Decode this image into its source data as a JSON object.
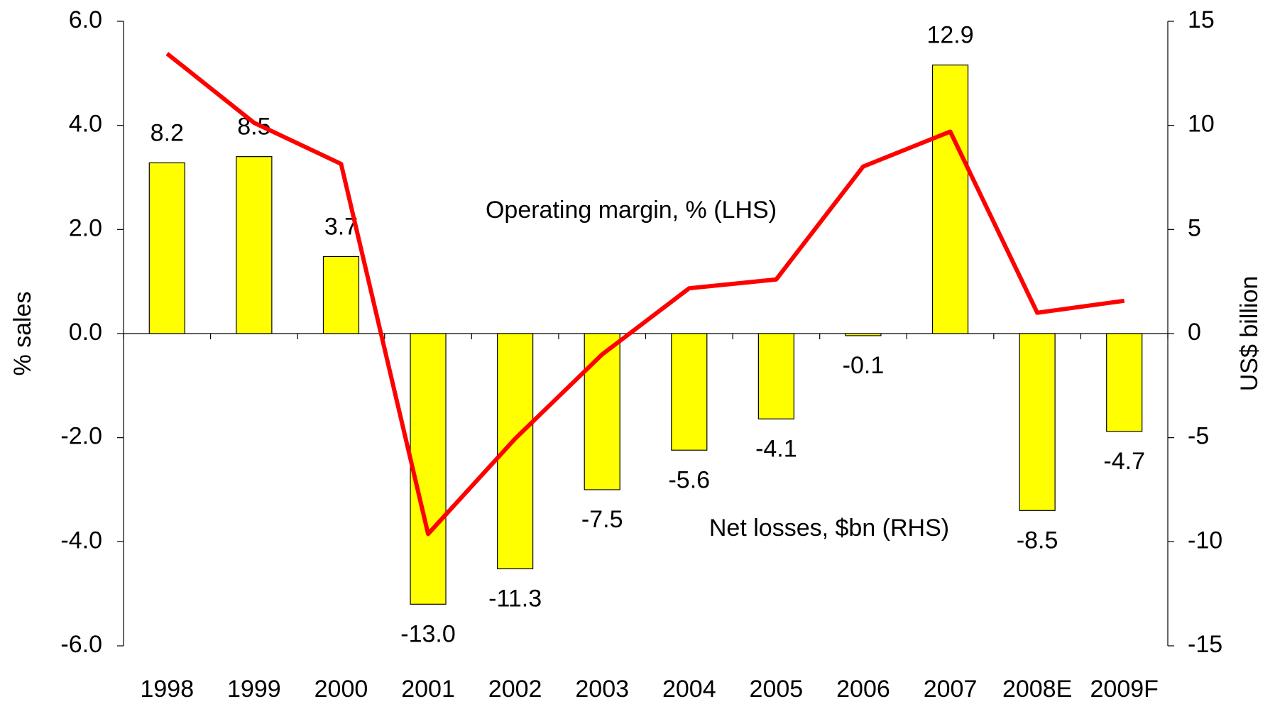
{
  "chart_data": {
    "type": "bar",
    "categories": [
      "1998",
      "1999",
      "2000",
      "2001",
      "2002",
      "2003",
      "2004",
      "2005",
      "2006",
      "2007",
      "2008E",
      "2009F"
    ],
    "series": [
      {
        "name": "Net losses, $bn (RHS)",
        "type": "bar",
        "axis": "y2",
        "color": "#ffff00",
        "values": [
          8.2,
          8.5,
          3.7,
          -13,
          -11.3,
          -7.5,
          -5.6,
          -4.1,
          -0.1,
          12.9,
          -8.5,
          -4.7
        ],
        "value_labels": [
          "8.2",
          "8.5",
          "3.7",
          "-13.0",
          "-11.3",
          "-7.5",
          "-5.6",
          "-4.1",
          "-0.1",
          "12.9",
          "-8.5",
          "-4.7"
        ]
      },
      {
        "name": "Operating margin, % (LHS)",
        "type": "line",
        "axis": "y",
        "color": "#ff0000",
        "values": [
          5.38,
          4.05,
          3.26,
          -3.85,
          -2.02,
          -0.4,
          0.87,
          1.04,
          3.21,
          3.88,
          0.4,
          0.63
        ]
      }
    ],
    "ylabel": "% sales",
    "y2label": "US$ billion",
    "ylim": [
      -6,
      6
    ],
    "yticks": [
      {
        "value": 6,
        "label": "6.0"
      },
      {
        "value": 4,
        "label": "4.0"
      },
      {
        "value": 2,
        "label": "2.0"
      },
      {
        "value": 0,
        "label": "0.0"
      },
      {
        "value": -2,
        "label": "-2.0"
      },
      {
        "value": -4,
        "label": "-4.0"
      },
      {
        "value": -6,
        "label": "-6.0"
      }
    ],
    "y2lim": [
      -15,
      15
    ],
    "y2ticks": [
      15,
      10,
      5,
      0,
      -5,
      -10,
      -15
    ],
    "grid": false
  }
}
